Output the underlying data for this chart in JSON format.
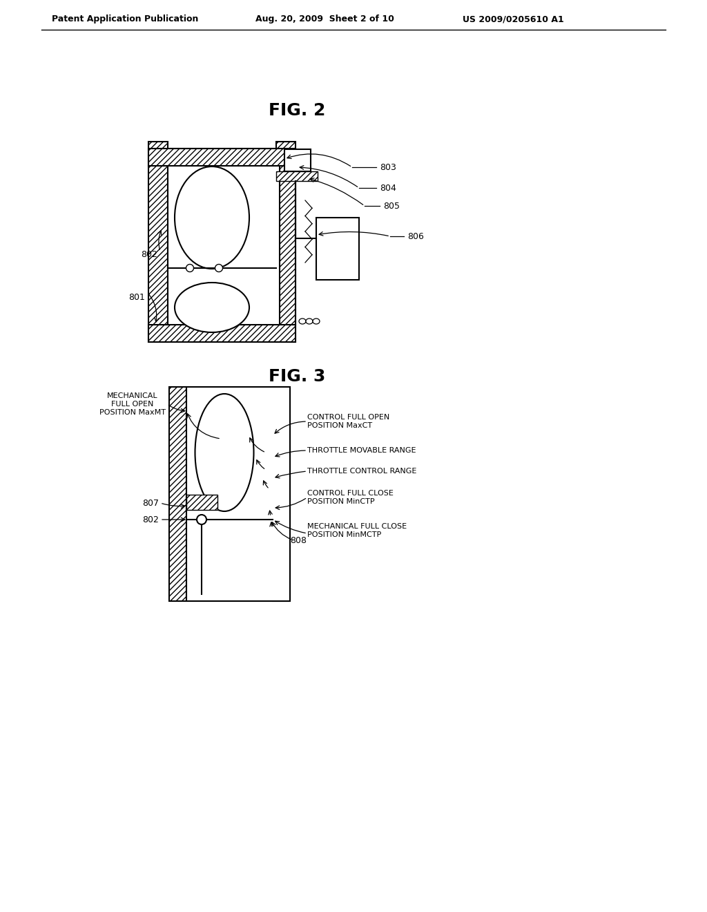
{
  "bg_color": "#ffffff",
  "header_text": "Patent Application Publication",
  "header_date": "Aug. 20, 2009  Sheet 2 of 10",
  "header_patent": "US 2009/0205610 A1",
  "fig2_title": "FIG. 2",
  "fig3_title": "FIG. 3",
  "lw_main": 1.5,
  "lw_thin": 1.0,
  "label_fs": 9,
  "label_fs3": 8,
  "title_fs": 18
}
